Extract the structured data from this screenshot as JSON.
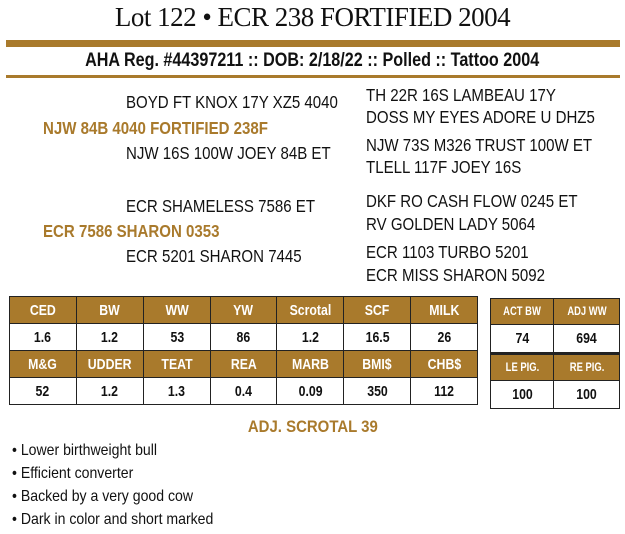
{
  "title": "Lot 122 • ECR 238 FORTIFIED 2004",
  "subtitle": "AHA Reg. #44397211 :: DOB: 2/18/22 :: Polled :: Tattoo 2004",
  "pedigree": {
    "sire": "NJW 84B 4040 FORTIFIED 238F",
    "sire_sire": "BOYD FT KNOX 17Y XZ5 4040",
    "sire_sire_sire": "TH 22R 16S LAMBEAU 17Y",
    "sire_sire_dam": "DOSS MY EYES ADORE U DHZ5",
    "sire_dam": "NJW 16S 100W JOEY 84B ET",
    "sire_dam_sire": "NJW 73S M326 TRUST 100W ET",
    "sire_dam_dam": "TLELL 117F JOEY 16S",
    "dam": "ECR 7586 SHARON 0353",
    "dam_sire": "ECR SHAMELESS 7586 ET",
    "dam_sire_sire": "DKF RO CASH FLOW 0245 ET",
    "dam_sire_dam": "RV GOLDEN LADY 5064",
    "dam_dam": "ECR 5201 SHARON 7445",
    "dam_dam_sire": "ECR 1103 TURBO 5201",
    "dam_dam_dam": "ECR MISS SHARON 5092"
  },
  "epd_table": {
    "row1_headers": [
      "CED",
      "BW",
      "WW",
      "YW",
      "Scrotal",
      "SCF",
      "MILK"
    ],
    "row1_values": [
      "1.6",
      "1.2",
      "53",
      "86",
      "1.2",
      "16.5",
      "26"
    ],
    "row2_headers": [
      "M&G",
      "UDDER",
      "TEAT",
      "REA",
      "MARB",
      "BMI$",
      "CHB$"
    ],
    "row2_values": [
      "52",
      "1.2",
      "1.3",
      "0.4",
      "0.09",
      "350",
      "112"
    ]
  },
  "actual_table": {
    "row1_headers": [
      "ACT BW",
      "ADJ WW"
    ],
    "row1_values": [
      "74",
      "694"
    ],
    "row2_headers": [
      "LE PIG.",
      "RE PIG."
    ],
    "row2_values": [
      "100",
      "100"
    ]
  },
  "adj_scrotal": "ADJ. SCROTAL 39",
  "bullets": [
    "• Lower birthweight bull",
    "• Efficient converter",
    "• Backed by a very good cow",
    "• Dark in color and short marked"
  ],
  "colors": {
    "accent": "#a97a2c"
  }
}
